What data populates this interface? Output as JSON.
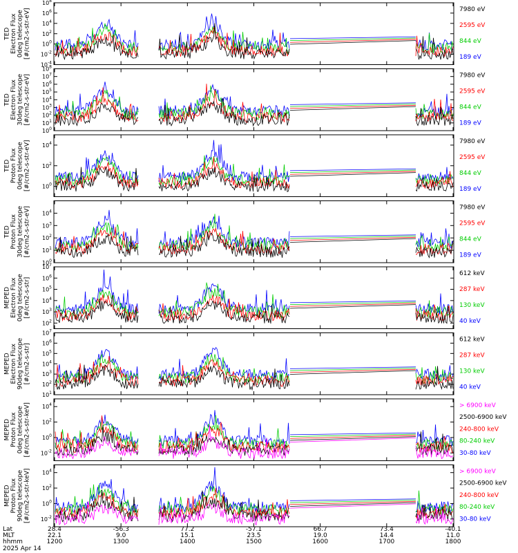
{
  "chart_data": {
    "type": "line",
    "date_label": "2025 Apr 14",
    "footer": {
      "rows": [
        {
          "label": "Lat",
          "values": [
            "28.4",
            "-56.3",
            "77.2",
            "-57.1",
            "66.7",
            "73.4",
            "-40.1"
          ]
        },
        {
          "label": "MLT",
          "values": [
            "22.1",
            "9.0",
            "15.1",
            "23.5",
            "19.0",
            "14.4",
            "11.0"
          ]
        },
        {
          "label": "hhmm",
          "values": [
            "1200",
            "1300",
            "1400",
            "1500",
            "1600",
            "1700",
            "1800"
          ]
        }
      ]
    },
    "panels": [
      {
        "ylabel_lines": [
          "TED",
          "Electron Flux",
          "0deg telescope",
          "[#/cm2-s-str-eV]"
        ],
        "yticks": [
          "10^8",
          "10^6",
          "10^4",
          "10^2",
          "10^0",
          "10^-2",
          "10^-4"
        ],
        "log_range": [
          -4,
          8
        ],
        "legend": [
          {
            "label": "7980 eV",
            "color": "#000000"
          },
          {
            "label": "2595 eV",
            "color": "#ff0000"
          },
          {
            "label": "844 eV",
            "color": "#00cc00"
          },
          {
            "label": "189 eV",
            "color": "#0000ff"
          }
        ]
      },
      {
        "ylabel_lines": [
          "TED",
          "Electron Flux",
          "30deg telescope",
          "[#/cm2-s-str-eV]"
        ],
        "yticks": [
          "10^8",
          "10^7",
          "10^6",
          "10^5",
          "10^4",
          "10^3",
          "10^2",
          "10^1",
          "10^0"
        ],
        "log_range": [
          0,
          8
        ],
        "legend": [
          {
            "label": "7980 eV",
            "color": "#000000"
          },
          {
            "label": "2595 eV",
            "color": "#ff0000"
          },
          {
            "label": "844 eV",
            "color": "#00cc00"
          },
          {
            "label": "189 eV",
            "color": "#0000ff"
          }
        ]
      },
      {
        "ylabel_lines": [
          "TED",
          "Proton Flux",
          "0deg telescope",
          "[#/cm2-s-str-eV]"
        ],
        "yticks": [
          "10^4",
          "10^2",
          "10^0"
        ],
        "log_range": [
          -1,
          5
        ],
        "legend": [
          {
            "label": "7980 eV",
            "color": "#000000"
          },
          {
            "label": "2595 eV",
            "color": "#ff0000"
          },
          {
            "label": "844 eV",
            "color": "#00cc00"
          },
          {
            "label": "189 eV",
            "color": "#0000ff"
          }
        ]
      },
      {
        "ylabel_lines": [
          "TED",
          "Proton Flux",
          "30deg telescope",
          "[#/cm2-s-str-eV]"
        ],
        "yticks": [
          "10^4",
          "10^3",
          "10^2",
          "10^1",
          "10^0"
        ],
        "log_range": [
          0,
          5
        ],
        "legend": [
          {
            "label": "7980 eV",
            "color": "#000000"
          },
          {
            "label": "2595 eV",
            "color": "#ff0000"
          },
          {
            "label": "844 eV",
            "color": "#00cc00"
          },
          {
            "label": "189 eV",
            "color": "#0000ff"
          }
        ]
      },
      {
        "ylabel_lines": [
          "MEPED",
          "Electron Flux",
          "0deg telescope",
          "[#/cm2-s-str]"
        ],
        "yticks": [
          "10^7",
          "10^6",
          "10^5",
          "10^4",
          "10^3",
          "10^2"
        ],
        "log_range": [
          1.5,
          7
        ],
        "legend": [
          {
            "label": "612 keV",
            "color": "#000000"
          },
          {
            "label": "287 keV",
            "color": "#ff0000"
          },
          {
            "label": "130 keV",
            "color": "#00cc00"
          },
          {
            "label": "40 keV",
            "color": "#0000ff"
          }
        ]
      },
      {
        "ylabel_lines": [
          "MEPED",
          "Electron Flux",
          "90deg telescope",
          "[#/cm2-s-str]"
        ],
        "yticks": [
          "10^7",
          "10^6",
          "10^5",
          "10^4",
          "10^3",
          "10^2",
          "10^1"
        ],
        "log_range": [
          1,
          7
        ],
        "legend": [
          {
            "label": "612 keV",
            "color": "#000000"
          },
          {
            "label": "287 keV",
            "color": "#ff0000"
          },
          {
            "label": "130 keV",
            "color": "#00cc00"
          },
          {
            "label": "40 keV",
            "color": "#0000ff"
          }
        ]
      },
      {
        "ylabel_lines": [
          "MEPED",
          "Proton Flux",
          "0deg telescope",
          "[#/cm2-s-str-keV]"
        ],
        "yticks": [
          "10^4",
          "10^2",
          "10^0",
          "10^-2"
        ],
        "log_range": [
          -3,
          5
        ],
        "legend": [
          {
            "label": "> 6900 keV",
            "color": "#ff00ff"
          },
          {
            "label": "2500-6900 keV",
            "color": "#000000"
          },
          {
            "label": "240-800 keV",
            "color": "#ff0000"
          },
          {
            "label": "80-240 keV",
            "color": "#00cc00"
          },
          {
            "label": "30-80 keV",
            "color": "#0000ff"
          }
        ]
      },
      {
        "ylabel_lines": [
          "MEPED",
          "Proton Flux",
          "90deg telescope",
          "[#/cm2-s-str-keV]"
        ],
        "yticks": [
          "10^4",
          "10^2",
          "10^0",
          "10^-2"
        ],
        "log_range": [
          -3,
          5
        ],
        "legend": [
          {
            "label": "> 6900 keV",
            "color": "#ff00ff"
          },
          {
            "label": "2500-6900 keV",
            "color": "#000000"
          },
          {
            "label": "240-800 keV",
            "color": "#ff0000"
          },
          {
            "label": "80-240 keV",
            "color": "#00cc00"
          },
          {
            "label": "30-80 keV",
            "color": "#0000ff"
          }
        ]
      }
    ]
  }
}
